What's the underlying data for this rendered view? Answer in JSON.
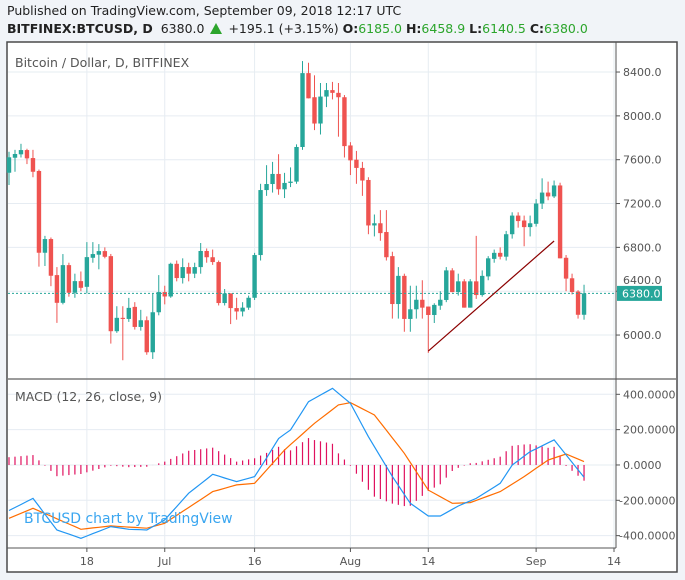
{
  "header": {
    "published": "Published on TradingView.com, September 09, 2018 12:17 UTC",
    "symbol": "BITFINEX:BTCUSD, D",
    "last": "6380.0",
    "change": "+195.1 (+3.15%)",
    "o_label": "O:",
    "o": "6185.0",
    "h_label": "H:",
    "h": "6458.9",
    "l_label": "L:",
    "l": "6140.5",
    "c_label": "C:",
    "c": "6380.0"
  },
  "colors": {
    "up": "#26a69a",
    "down": "#ef5350",
    "macd": "#2196f3",
    "signal": "#ff6d00",
    "histogram": "#e0115f",
    "trendline": "#8b0000",
    "grid": "#e6ecf2",
    "change_up": "#2ca52c"
  },
  "watermark": "BTCUSD chart by TradingView",
  "chart_data": [
    {
      "type": "candlestick",
      "title": "Bitcoin / Dollar, D, BITFINEX",
      "start_date": "2018-06-05",
      "ohlc": [
        [
          7481,
          7673,
          7369,
          7622
        ],
        [
          7618,
          7690,
          7490,
          7652
        ],
        [
          7649,
          7745,
          7620,
          7688
        ],
        [
          7688,
          7700,
          7560,
          7612
        ],
        [
          7615,
          7690,
          7440,
          7490
        ],
        [
          7497,
          7510,
          6624,
          6751
        ],
        [
          6751,
          6905,
          6630,
          6876
        ],
        [
          6876,
          6890,
          6446,
          6541
        ],
        [
          6547,
          6620,
          6111,
          6294
        ],
        [
          6294,
          6739,
          6280,
          6638
        ],
        [
          6638,
          6660,
          6350,
          6386
        ],
        [
          6386,
          6560,
          6340,
          6492
        ],
        [
          6492,
          6580,
          6400,
          6431
        ],
        [
          6440,
          6848,
          6380,
          6711
        ],
        [
          6705,
          6848,
          6660,
          6739
        ],
        [
          6733,
          6830,
          6600,
          6766
        ],
        [
          6766,
          6800,
          6700,
          6714
        ],
        [
          6720,
          6740,
          5922,
          6035
        ],
        [
          6035,
          6263,
          6020,
          6157
        ],
        [
          6157,
          6263,
          5770,
          6147
        ],
        [
          6147,
          6339,
          6120,
          6248
        ],
        [
          6257,
          6300,
          6050,
          6074
        ],
        [
          6074,
          6230,
          6040,
          6135
        ],
        [
          6135,
          6170,
          5820,
          5843
        ],
        [
          5843,
          6380,
          5782,
          6208
        ],
        [
          6208,
          6547,
          6180,
          6392
        ],
        [
          6392,
          6450,
          6280,
          6352
        ],
        [
          6352,
          6660,
          6340,
          6650
        ],
        [
          6650,
          6680,
          6490,
          6520
        ],
        [
          6520,
          6700,
          6470,
          6620
        ],
        [
          6620,
          6660,
          6490,
          6560
        ],
        [
          6560,
          6660,
          6520,
          6620
        ],
        [
          6620,
          6840,
          6560,
          6767
        ],
        [
          6767,
          6790,
          6660,
          6710
        ],
        [
          6710,
          6780,
          6640,
          6666
        ],
        [
          6666,
          6680,
          6270,
          6292
        ],
        [
          6292,
          6420,
          6270,
          6380
        ],
        [
          6380,
          6380,
          6100,
          6246
        ],
        [
          6246,
          6340,
          6140,
          6215
        ],
        [
          6215,
          6300,
          6170,
          6250
        ],
        [
          6250,
          6360,
          6230,
          6340
        ],
        [
          6340,
          6750,
          6320,
          6730
        ],
        [
          6730,
          7380,
          6680,
          7323
        ],
        [
          7323,
          7550,
          7270,
          7378
        ],
        [
          7378,
          7580,
          7300,
          7470
        ],
        [
          7470,
          7650,
          7280,
          7330
        ],
        [
          7330,
          7480,
          7250,
          7388
        ],
        [
          7388,
          7530,
          7350,
          7400
        ],
        [
          7400,
          7740,
          7380,
          7716
        ],
        [
          7716,
          8500,
          7690,
          8390
        ],
        [
          8390,
          8485,
          8160,
          8160
        ],
        [
          8170,
          8370,
          7870,
          7930
        ],
        [
          7930,
          8300,
          7830,
          8176
        ],
        [
          8176,
          8300,
          8080,
          8235
        ],
        [
          8235,
          8310,
          8150,
          8210
        ],
        [
          8210,
          8300,
          7810,
          8170
        ],
        [
          8170,
          8190,
          7620,
          7724
        ],
        [
          7730,
          7760,
          7460,
          7594
        ],
        [
          7600,
          7680,
          7380,
          7525
        ],
        [
          7525,
          7580,
          7270,
          7410
        ],
        [
          7415,
          7440,
          6920,
          7000
        ],
        [
          7000,
          7100,
          6900,
          7020
        ],
        [
          7020,
          7140,
          6860,
          6930
        ],
        [
          6940,
          7140,
          6680,
          6710
        ],
        [
          6720,
          6760,
          6150,
          6283
        ],
        [
          6283,
          6620,
          6150,
          6540
        ],
        [
          6540,
          6560,
          6030,
          6147
        ],
        [
          6147,
          6450,
          6030,
          6235
        ],
        [
          6235,
          6450,
          6150,
          6322
        ],
        [
          6322,
          6500,
          6150,
          6250
        ],
        [
          6260,
          6260,
          5837,
          6183
        ],
        [
          6183,
          6290,
          6110,
          6275
        ],
        [
          6268,
          6400,
          6230,
          6322
        ],
        [
          6320,
          6620,
          6300,
          6590
        ],
        [
          6590,
          6610,
          6390,
          6392
        ],
        [
          6392,
          6560,
          6360,
          6490
        ],
        [
          6490,
          6510,
          6250,
          6250
        ],
        [
          6250,
          6510,
          6250,
          6490
        ],
        [
          6490,
          6905,
          6330,
          6365
        ],
        [
          6365,
          6590,
          6350,
          6540
        ],
        [
          6535,
          6720,
          6500,
          6700
        ],
        [
          6695,
          6780,
          6660,
          6750
        ],
        [
          6750,
          6800,
          6690,
          6715
        ],
        [
          6715,
          6950,
          6680,
          6920
        ],
        [
          6920,
          7120,
          6880,
          7090
        ],
        [
          7090,
          7120,
          6980,
          7040
        ],
        [
          7045,
          7090,
          6810,
          6985
        ],
        [
          6985,
          7090,
          6900,
          7020
        ],
        [
          7015,
          7240,
          6990,
          7200
        ],
        [
          7200,
          7430,
          7150,
          7300
        ],
        [
          7300,
          7400,
          7230,
          7265
        ],
        [
          7265,
          7410,
          7250,
          7365
        ],
        [
          7365,
          7390,
          6700,
          6700
        ],
        [
          6705,
          6730,
          6400,
          6515
        ],
        [
          6518,
          6560,
          6370,
          6393
        ],
        [
          6397,
          6410,
          6150,
          6185
        ],
        [
          6185,
          6459,
          6140,
          6380
        ]
      ],
      "ylim": [
        5608,
        8674
      ],
      "yticks": [
        {
          "value": 6000,
          "label": "6000.0"
        },
        {
          "value": 6400,
          "label": "6400.0"
        },
        {
          "value": 6800,
          "label": "6800.0"
        },
        {
          "value": 7200,
          "label": "7200.0"
        },
        {
          "value": 7600,
          "label": "7600.0"
        },
        {
          "value": 8000,
          "label": "8000.0"
        },
        {
          "value": 8400,
          "label": "8400.0"
        }
      ],
      "last_price": {
        "value": 6380,
        "label": "6380.0"
      },
      "trendline": [
        [
          "2018-08-14",
          5854
        ],
        [
          "2018-09-04",
          6858
        ]
      ],
      "grid": true
    },
    {
      "type": "line",
      "title": "MACD (12, 26, close, 9)",
      "ylim": [
        -470,
        481
      ],
      "yticks": [
        {
          "value": 400,
          "label": "400.0000"
        },
        {
          "value": 200,
          "label": "200.0000"
        },
        {
          "value": 0,
          "label": "0.0000"
        },
        {
          "value": -200,
          "label": "-200.0000"
        },
        {
          "value": -400,
          "label": "-400.0000"
        }
      ],
      "macd": [
        [
          "2018-06-05",
          -258
        ],
        [
          "2018-06-09",
          -189
        ],
        [
          "2018-06-13",
          -368
        ],
        [
          "2018-06-17",
          -415
        ],
        [
          "2018-06-22",
          -349
        ],
        [
          "2018-06-25",
          -364
        ],
        [
          "2018-06-28",
          -368
        ],
        [
          "2018-07-01",
          -311
        ],
        [
          "2018-07-05",
          -160
        ],
        [
          "2018-07-09",
          -53
        ],
        [
          "2018-07-13",
          -94
        ],
        [
          "2018-07-16",
          -66
        ],
        [
          "2018-07-18",
          40
        ],
        [
          "2018-07-20",
          150
        ],
        [
          "2018-07-22",
          198
        ],
        [
          "2018-07-25",
          358
        ],
        [
          "2018-07-29",
          434
        ],
        [
          "2018-08-01",
          349
        ],
        [
          "2018-08-04",
          160
        ],
        [
          "2018-08-08",
          -66
        ],
        [
          "2018-08-11",
          -217
        ],
        [
          "2018-08-14",
          -289
        ],
        [
          "2018-08-16",
          -289
        ],
        [
          "2018-08-19",
          -232
        ],
        [
          "2018-08-22",
          -189
        ],
        [
          "2018-08-26",
          -104
        ],
        [
          "2018-08-28",
          0
        ],
        [
          "2018-08-31",
          75
        ],
        [
          "2018-09-04",
          142
        ],
        [
          "2018-09-06",
          57
        ],
        [
          "2018-09-09",
          -70
        ]
      ],
      "signal": [
        [
          "2018-06-05",
          -302
        ],
        [
          "2018-06-09",
          -245
        ],
        [
          "2018-06-17",
          -364
        ],
        [
          "2018-06-22",
          -345
        ],
        [
          "2018-06-28",
          -358
        ],
        [
          "2018-07-01",
          -330
        ],
        [
          "2018-07-09",
          -151
        ],
        [
          "2018-07-13",
          -113
        ],
        [
          "2018-07-16",
          -104
        ],
        [
          "2018-07-21",
          85
        ],
        [
          "2018-07-26",
          236
        ],
        [
          "2018-07-30",
          340
        ],
        [
          "2018-08-01",
          353
        ],
        [
          "2018-08-05",
          283
        ],
        [
          "2018-08-10",
          66
        ],
        [
          "2018-08-14",
          -142
        ],
        [
          "2018-08-18",
          -217
        ],
        [
          "2018-08-21",
          -213
        ],
        [
          "2018-08-26",
          -151
        ],
        [
          "2018-08-30",
          -66
        ],
        [
          "2018-09-03",
          28
        ],
        [
          "2018-09-06",
          62
        ],
        [
          "2018-09-09",
          19
        ]
      ],
      "grid": true
    }
  ],
  "xticks": [
    {
      "date": "2018-06-18",
      "label": "18"
    },
    {
      "date": "2018-07-01",
      "label": "Jul"
    },
    {
      "date": "2018-07-16",
      "label": "16"
    },
    {
      "date": "2018-08-01",
      "label": "Aug"
    },
    {
      "date": "2018-08-14",
      "label": "14"
    },
    {
      "date": "2018-09-01",
      "label": "Sep"
    },
    {
      "date": "2018-09-14",
      "label": "14"
    }
  ]
}
